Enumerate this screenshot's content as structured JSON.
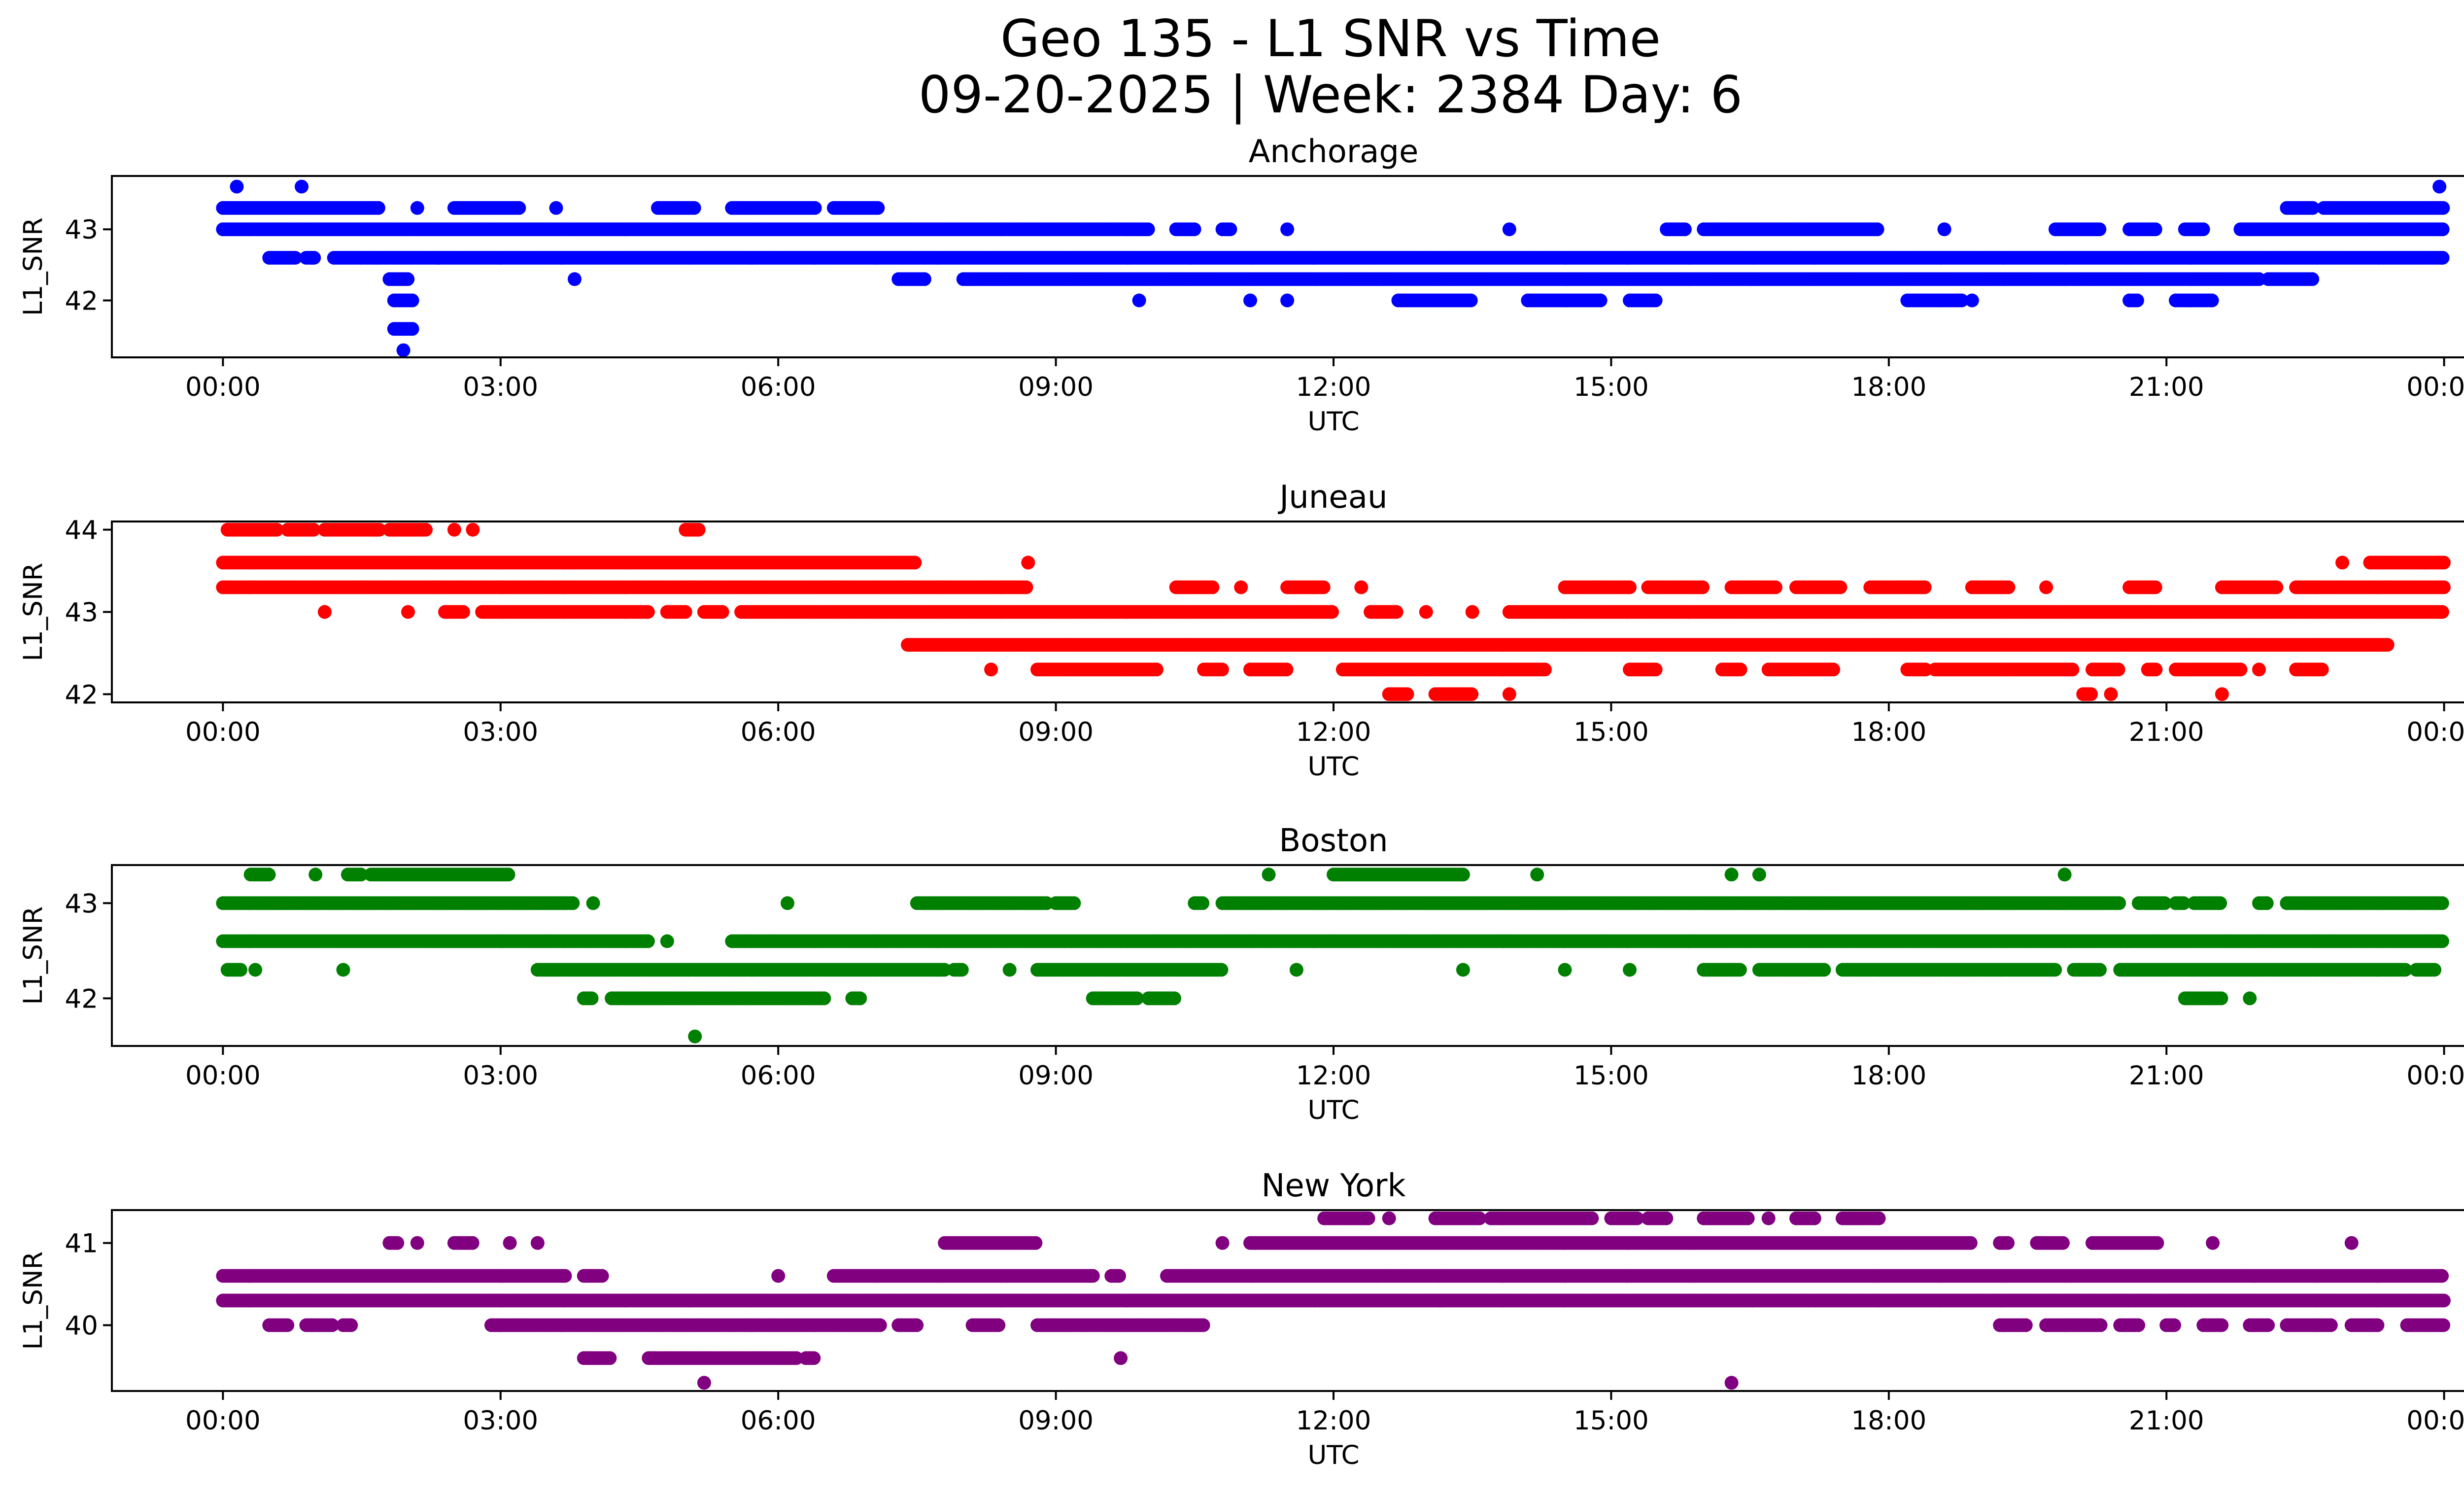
{
  "figure": {
    "title_line1": "Geo 135 - L1 SNR vs Time",
    "title_line2": "09-20-2025 | Week: 2384 Day: 6"
  },
  "chart_data": [
    {
      "type": "scatter",
      "title": "Anchorage",
      "xlabel": "UTC",
      "ylabel": "L1_SNR",
      "color": "#0000ff",
      "xlim": [
        "00:00",
        "24:00"
      ],
      "ylim": [
        41.2,
        43.75
      ],
      "x_ticks": [
        "00:00",
        "03:00",
        "06:00",
        "09:00",
        "12:00",
        "15:00",
        "18:00",
        "21:00",
        "00:00"
      ],
      "y_ticks": [
        42,
        43
      ],
      "levels": [
        {
          "y": 43.6,
          "x": [
            0.15,
            0.85,
            23.95
          ]
        },
        {
          "y": 43.3,
          "x": [
            [
              0.0,
              1.7
            ],
            [
              2.1,
              2.1
            ],
            [
              2.5,
              3.2
            ],
            [
              3.6,
              3.6
            ],
            [
              4.7,
              5.1
            ],
            [
              5.5,
              6.4
            ],
            [
              6.6,
              7.1
            ],
            [
              22.3,
              22.6
            ],
            [
              22.7,
              24.0
            ]
          ]
        },
        {
          "y": 43.0,
          "x": [
            [
              0.0,
              10.0
            ],
            [
              10.3,
              10.5
            ],
            [
              10.8,
              10.9
            ],
            [
              11.5,
              11.5
            ],
            [
              13.9,
              13.9
            ],
            [
              15.6,
              15.8
            ],
            [
              16.0,
              17.9
            ],
            [
              18.6,
              18.6
            ],
            [
              19.8,
              20.3
            ],
            [
              20.6,
              20.9
            ],
            [
              21.2,
              21.4
            ],
            [
              21.8,
              24.0
            ]
          ]
        },
        {
          "y": 42.6,
          "x": [
            [
              0.5,
              0.8
            ],
            [
              0.9,
              1.0
            ],
            [
              1.2,
              1.5
            ],
            [
              1.5,
              24.0
            ]
          ]
        },
        {
          "y": 42.3,
          "x": [
            [
              1.8,
              2.0
            ],
            [
              3.8,
              3.8
            ],
            [
              7.3,
              7.6
            ],
            [
              8.0,
              22.0
            ],
            [
              22.1,
              22.6
            ]
          ]
        },
        {
          "y": 42.0,
          "x": [
            [
              1.85,
              2.05
            ],
            [
              9.9,
              9.9
            ],
            [
              11.1,
              11.1
            ],
            [
              11.5,
              11.5
            ],
            [
              12.7,
              13.5
            ],
            [
              14.1,
              14.9
            ],
            [
              15.2,
              15.5
            ],
            [
              18.2,
              18.8
            ],
            [
              18.9,
              18.9
            ],
            [
              20.6,
              20.7
            ],
            [
              21.1,
              21.5
            ]
          ]
        },
        {
          "y": 41.6,
          "x": [
            [
              1.85,
              2.05
            ]
          ]
        },
        {
          "y": 41.3,
          "x": [
            1.95
          ]
        }
      ]
    },
    {
      "type": "scatter",
      "title": "Juneau",
      "xlabel": "UTC",
      "ylabel": "L1_SNR",
      "color": "#ff0000",
      "xlim": [
        "00:00",
        "24:00"
      ],
      "ylim": [
        41.9,
        44.1
      ],
      "x_ticks": [
        "00:00",
        "03:00",
        "06:00",
        "09:00",
        "12:00",
        "15:00",
        "18:00",
        "21:00",
        "00:00"
      ],
      "y_ticks": [
        42,
        43,
        44
      ],
      "levels": [
        {
          "y": 44.0,
          "x": [
            [
              0.05,
              0.6
            ],
            [
              0.7,
              1.0
            ],
            [
              1.1,
              1.7
            ],
            [
              1.8,
              2.2
            ],
            [
              2.5,
              2.5
            ],
            [
              2.7,
              2.7
            ],
            [
              5.0,
              5.15
            ]
          ]
        },
        {
          "y": 43.6,
          "x": [
            [
              0.0,
              7.5
            ],
            [
              8.7,
              8.7
            ],
            [
              23.8,
              24.0
            ],
            [
              22.9,
              22.9
            ],
            [
              23.2,
              23.8
            ]
          ]
        },
        {
          "y": 43.3,
          "x": [
            [
              0.0,
              8.7
            ],
            [
              10.3,
              10.7
            ],
            [
              11.0,
              11.0
            ],
            [
              11.5,
              11.9
            ],
            [
              12.3,
              12.3
            ],
            [
              14.5,
              15.2
            ],
            [
              15.4,
              16.0
            ],
            [
              16.3,
              16.8
            ],
            [
              17.0,
              17.5
            ],
            [
              17.8,
              18.4
            ],
            [
              18.9,
              19.3
            ],
            [
              19.7,
              19.7
            ],
            [
              20.6,
              20.9
            ],
            [
              21.6,
              22.2
            ],
            [
              22.4,
              24.0
            ]
          ]
        },
        {
          "y": 43.0,
          "x": [
            [
              1.1,
              1.1
            ],
            [
              2.0,
              2.0
            ],
            [
              2.4,
              2.6
            ],
            [
              2.8,
              4.6
            ],
            [
              4.8,
              5.0
            ],
            [
              5.2,
              5.4
            ],
            [
              5.6,
              12.0
            ],
            [
              12.4,
              12.7
            ],
            [
              13.0,
              13.0
            ],
            [
              13.5,
              13.5
            ],
            [
              13.9,
              24.0
            ]
          ]
        },
        {
          "y": 42.6,
          "x": [
            [
              7.4,
              23.4
            ]
          ]
        },
        {
          "y": 42.3,
          "x": [
            [
              8.3,
              8.3
            ],
            [
              8.8,
              10.1
            ],
            [
              10.6,
              10.8
            ],
            [
              11.1,
              11.5
            ],
            [
              12.1,
              14.3
            ],
            [
              15.2,
              15.5
            ],
            [
              16.2,
              16.4
            ],
            [
              16.7,
              17.4
            ],
            [
              18.2,
              18.4
            ],
            [
              18.5,
              20.0
            ],
            [
              20.2,
              20.5
            ],
            [
              20.8,
              20.9
            ],
            [
              21.1,
              21.8
            ],
            [
              22.0,
              22.0
            ],
            [
              22.4,
              22.7
            ]
          ]
        },
        {
          "y": 42.0,
          "x": [
            [
              12.6,
              12.8
            ],
            [
              13.1,
              13.5
            ],
            [
              13.9,
              13.9
            ],
            [
              20.1,
              20.2
            ],
            [
              20.4,
              20.4
            ],
            [
              21.6,
              21.6
            ]
          ]
        }
      ]
    },
    {
      "type": "scatter",
      "title": "Boston",
      "xlabel": "UTC",
      "ylabel": "L1_SNR",
      "color": "#008000",
      "xlim": [
        "00:00",
        "24:00"
      ],
      "ylim": [
        41.5,
        43.4
      ],
      "x_ticks": [
        "00:00",
        "03:00",
        "06:00",
        "09:00",
        "12:00",
        "15:00",
        "18:00",
        "21:00",
        "00:00"
      ],
      "y_ticks": [
        42,
        43
      ],
      "levels": [
        {
          "y": 43.3,
          "x": [
            [
              0.3,
              0.5
            ],
            [
              1.0,
              1.0
            ],
            [
              1.35,
              1.5
            ],
            [
              1.6,
              3.1
            ],
            [
              11.3,
              11.3
            ],
            [
              12.0,
              13.4
            ],
            [
              14.2,
              14.2
            ],
            [
              16.3,
              16.3
            ],
            [
              16.6,
              16.6
            ],
            [
              19.9,
              19.9
            ]
          ]
        },
        {
          "y": 43.0,
          "x": [
            [
              0.0,
              3.8
            ],
            [
              4.0,
              4.0
            ],
            [
              6.1,
              6.1
            ],
            [
              7.5,
              8.9
            ],
            [
              9.0,
              9.2
            ],
            [
              10.5,
              10.6
            ],
            [
              10.8,
              20.5
            ],
            [
              20.7,
              21.0
            ],
            [
              21.1,
              21.2
            ],
            [
              21.3,
              21.6
            ],
            [
              22.0,
              22.1
            ],
            [
              22.3,
              24.0
            ]
          ]
        },
        {
          "y": 42.6,
          "x": [
            [
              0.0,
              4.6
            ],
            [
              4.8,
              4.8
            ],
            [
              5.5,
              24.0
            ]
          ]
        },
        {
          "y": 42.3,
          "x": [
            [
              0.05,
              0.2
            ],
            [
              0.35,
              0.35
            ],
            [
              1.3,
              1.3
            ],
            [
              3.4,
              7.8
            ],
            [
              7.9,
              8.0
            ],
            [
              8.5,
              8.5
            ],
            [
              8.8,
              10.8
            ],
            [
              11.6,
              11.6
            ],
            [
              13.4,
              13.4
            ],
            [
              14.5,
              14.5
            ],
            [
              15.2,
              15.2
            ],
            [
              16.0,
              16.4
            ],
            [
              16.6,
              17.3
            ],
            [
              17.5,
              19.8
            ],
            [
              20.0,
              20.3
            ],
            [
              20.5,
              23.6
            ],
            [
              23.7,
              23.9
            ]
          ]
        },
        {
          "y": 42.0,
          "x": [
            [
              3.9,
              4.0
            ],
            [
              4.2,
              6.5
            ],
            [
              6.8,
              6.9
            ],
            [
              9.4,
              9.9
            ],
            [
              10.0,
              10.3
            ],
            [
              21.2,
              21.6
            ],
            [
              21.9,
              21.9
            ]
          ]
        },
        {
          "y": 41.6,
          "x": [
            5.1
          ]
        }
      ]
    },
    {
      "type": "scatter",
      "title": "New York",
      "xlabel": "UTC",
      "ylabel": "L1_SNR",
      "color": "#800080",
      "xlim": [
        "00:00",
        "24:00"
      ],
      "ylim": [
        39.2,
        41.4
      ],
      "x_ticks": [
        "00:00",
        "03:00",
        "06:00",
        "09:00",
        "12:00",
        "15:00",
        "18:00",
        "21:00",
        "00:00"
      ],
      "y_ticks": [
        40,
        41
      ],
      "levels": [
        {
          "y": 41.3,
          "x": [
            [
              11.9,
              12.4
            ],
            [
              12.6,
              12.6
            ],
            [
              13.1,
              13.6
            ],
            [
              13.7,
              14.8
            ],
            [
              15.0,
              15.3
            ],
            [
              15.4,
              15.6
            ],
            [
              16.0,
              16.5
            ],
            [
              16.7,
              16.7
            ],
            [
              17.0,
              17.2
            ],
            [
              17.5,
              17.9
            ]
          ]
        },
        {
          "y": 41.0,
          "x": [
            [
              1.8,
              1.9
            ],
            [
              2.1,
              2.1
            ],
            [
              2.5,
              2.7
            ],
            [
              3.1,
              3.1
            ],
            [
              3.4,
              3.4
            ],
            [
              7.8,
              8.8
            ],
            [
              10.8,
              10.8
            ],
            [
              11.1,
              18.9
            ],
            [
              19.2,
              19.3
            ],
            [
              19.6,
              19.9
            ],
            [
              20.2,
              20.9
            ],
            [
              21.5,
              21.5
            ],
            [
              23.0,
              23.0
            ]
          ]
        },
        {
          "y": 40.6,
          "x": [
            [
              0.0,
              3.7
            ],
            [
              3.9,
              4.1
            ],
            [
              6.0,
              6.0
            ],
            [
              6.6,
              9.4
            ],
            [
              9.6,
              9.7
            ],
            [
              10.2,
              24.0
            ]
          ]
        },
        {
          "y": 40.3,
          "x": [
            [
              0.0,
              24.0
            ]
          ]
        },
        {
          "y": 40.0,
          "x": [
            [
              0.5,
              0.7
            ],
            [
              0.9,
              1.2
            ],
            [
              1.3,
              1.4
            ],
            [
              2.9,
              7.1
            ],
            [
              7.3,
              7.5
            ],
            [
              8.1,
              8.4
            ],
            [
              8.8,
              10.6
            ],
            [
              19.2,
              19.5
            ],
            [
              19.7,
              20.3
            ],
            [
              20.5,
              20.7
            ],
            [
              21.0,
              21.1
            ],
            [
              21.4,
              21.6
            ],
            [
              21.9,
              22.1
            ],
            [
              22.3,
              22.8
            ],
            [
              23.0,
              23.3
            ],
            [
              23.6,
              24.0
            ]
          ]
        },
        {
          "y": 39.6,
          "x": [
            [
              3.9,
              4.2
            ],
            [
              4.6,
              6.2
            ],
            [
              6.3,
              6.4
            ],
            [
              9.7,
              9.7
            ]
          ]
        },
        {
          "y": 39.3,
          "x": [
            5.2,
            16.3
          ]
        }
      ]
    }
  ]
}
